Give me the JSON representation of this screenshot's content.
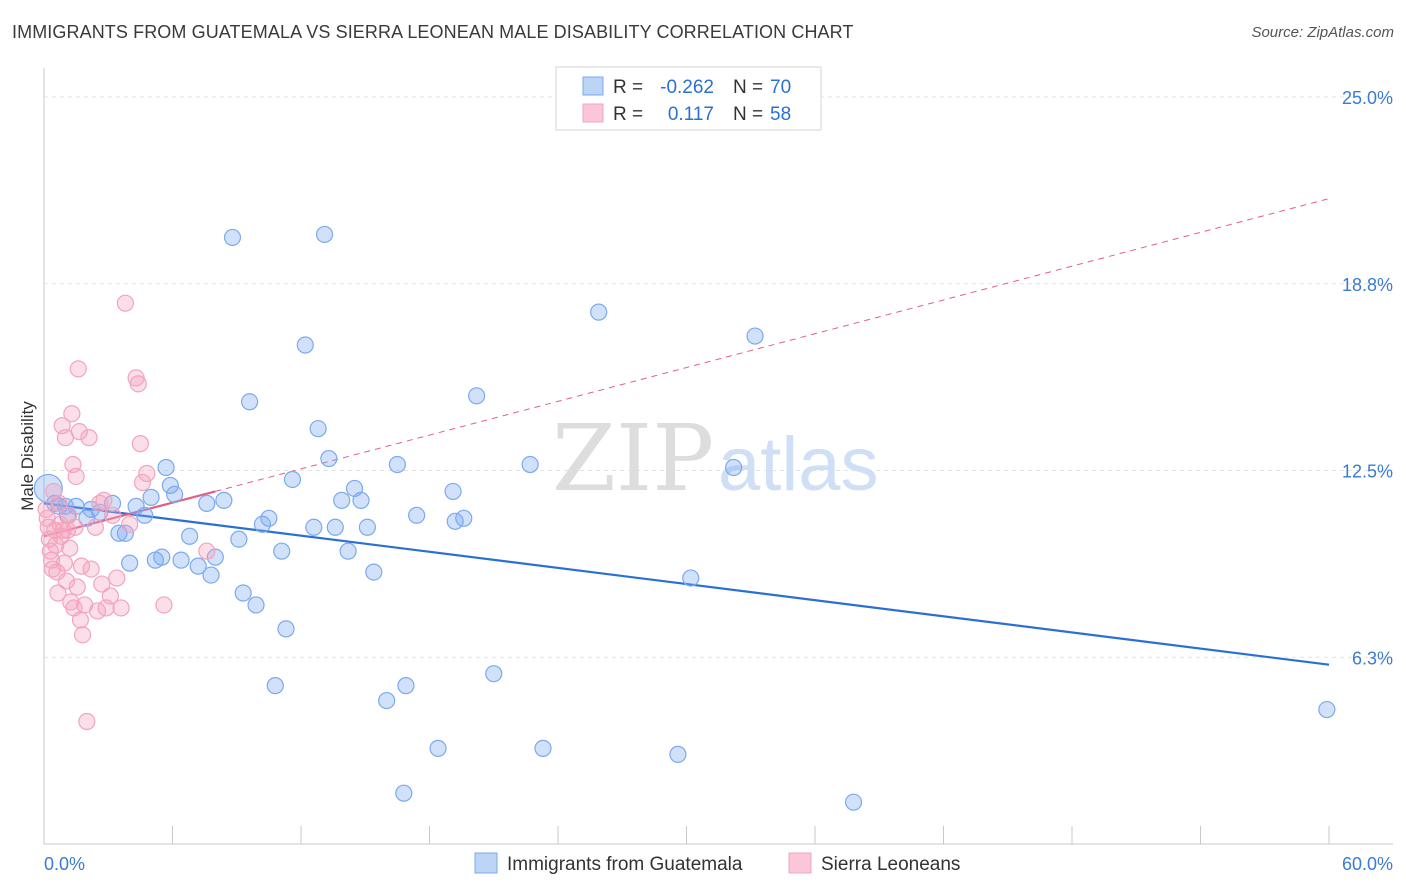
{
  "chart_data": {
    "type": "scatter",
    "title": "IMMIGRANTS FROM GUATEMALA VS SIERRA LEONEAN MALE DISABILITY CORRELATION CHART",
    "source": "Source: ZipAtlas.com",
    "watermark": {
      "zip": "ZIP",
      "atlas": "atlas"
    },
    "ylabel": "Male Disability",
    "xlim": [
      0,
      60
    ],
    "ylim": [
      0,
      25
    ],
    "x_tick_labels": [
      "0.0%",
      "60.0%"
    ],
    "y_ticks": [
      {
        "value": 6.25,
        "label": "6.3%"
      },
      {
        "value": 12.5,
        "label": "12.5%"
      },
      {
        "value": 18.75,
        "label": "18.8%"
      },
      {
        "value": 25.0,
        "label": "25.0%"
      }
    ],
    "stats_box": [
      {
        "r_label": "R =",
        "r_value": "-0.262",
        "n_label": "N =",
        "n_value": "70"
      },
      {
        "r_label": "R =",
        "r_value": "0.117",
        "n_label": "N =",
        "n_value": "58"
      }
    ],
    "series": [
      {
        "name": "Immigrants from Guatemala",
        "color": "#7aaaf0",
        "line_color": "#2a6fd4",
        "trend": {
          "x": [
            0,
            60
          ],
          "y": [
            11.4,
            6.0
          ],
          "dashed": false
        },
        "points": [
          [
            0.2,
            11.9
          ],
          [
            0.5,
            11.4
          ],
          [
            0.7,
            11.3
          ],
          [
            1.0,
            11.3
          ],
          [
            1.1,
            11.0
          ],
          [
            1.5,
            11.3
          ],
          [
            2.0,
            10.9
          ],
          [
            2.2,
            11.2
          ],
          [
            2.6,
            11.1
          ],
          [
            3.2,
            11.4
          ],
          [
            3.5,
            10.4
          ],
          [
            3.8,
            10.4
          ],
          [
            4.0,
            9.4
          ],
          [
            4.3,
            11.3
          ],
          [
            4.7,
            11.0
          ],
          [
            5.0,
            11.6
          ],
          [
            5.2,
            9.5
          ],
          [
            5.5,
            9.6
          ],
          [
            5.7,
            12.6
          ],
          [
            5.9,
            12.0
          ],
          [
            6.1,
            11.7
          ],
          [
            6.4,
            9.5
          ],
          [
            6.8,
            10.3
          ],
          [
            7.2,
            9.3
          ],
          [
            7.6,
            11.4
          ],
          [
            7.8,
            9.0
          ],
          [
            8.0,
            9.6
          ],
          [
            8.4,
            11.5
          ],
          [
            8.8,
            20.3
          ],
          [
            9.1,
            10.2
          ],
          [
            9.3,
            8.4
          ],
          [
            9.6,
            14.8
          ],
          [
            9.9,
            8.0
          ],
          [
            10.2,
            10.7
          ],
          [
            10.5,
            10.9
          ],
          [
            10.8,
            5.3
          ],
          [
            11.1,
            9.8
          ],
          [
            11.3,
            7.2
          ],
          [
            11.6,
            12.2
          ],
          [
            12.2,
            16.7
          ],
          [
            12.6,
            10.6
          ],
          [
            12.8,
            13.9
          ],
          [
            13.1,
            20.4
          ],
          [
            13.3,
            12.9
          ],
          [
            13.6,
            10.6
          ],
          [
            13.9,
            11.5
          ],
          [
            14.2,
            9.8
          ],
          [
            14.5,
            11.9
          ],
          [
            14.8,
            11.5
          ],
          [
            15.1,
            10.6
          ],
          [
            15.4,
            9.1
          ],
          [
            16.0,
            4.8
          ],
          [
            16.5,
            12.7
          ],
          [
            16.8,
            1.7
          ],
          [
            16.9,
            5.3
          ],
          [
            17.4,
            11.0
          ],
          [
            18.4,
            3.2
          ],
          [
            19.1,
            11.8
          ],
          [
            19.2,
            10.8
          ],
          [
            19.6,
            10.9
          ],
          [
            20.2,
            15.0
          ],
          [
            21.0,
            5.7
          ],
          [
            22.7,
            12.7
          ],
          [
            23.3,
            3.2
          ],
          [
            25.9,
            17.8
          ],
          [
            29.6,
            3.0
          ],
          [
            30.2,
            8.9
          ],
          [
            32.2,
            12.6
          ],
          [
            33.2,
            17.0
          ],
          [
            37.8,
            1.4
          ],
          [
            59.9,
            4.5
          ]
        ]
      },
      {
        "name": "Sierra Leoneans",
        "color": "#f4a3bc",
        "line_color": "#e0608a",
        "trend": {
          "x": [
            0,
            8
          ],
          "y": [
            10.3,
            11.8
          ],
          "dashed": false
        },
        "trend_ext": {
          "x": [
            8,
            60
          ],
          "y": [
            11.8,
            21.6
          ],
          "dashed": true
        },
        "points": [
          [
            0.1,
            11.2
          ],
          [
            0.15,
            10.9
          ],
          [
            0.2,
            10.6
          ],
          [
            0.25,
            10.2
          ],
          [
            0.3,
            9.8
          ],
          [
            0.35,
            9.5
          ],
          [
            0.4,
            9.2
          ],
          [
            0.45,
            11.8
          ],
          [
            0.5,
            10.5
          ],
          [
            0.55,
            10.0
          ],
          [
            0.6,
            9.1
          ],
          [
            0.65,
            8.4
          ],
          [
            0.7,
            11.4
          ],
          [
            0.75,
            10.7
          ],
          [
            0.8,
            10.3
          ],
          [
            0.85,
            14.0
          ],
          [
            0.9,
            10.5
          ],
          [
            0.95,
            9.4
          ],
          [
            1.0,
            13.6
          ],
          [
            1.05,
            8.8
          ],
          [
            1.1,
            10.5
          ],
          [
            1.15,
            11.0
          ],
          [
            1.2,
            9.9
          ],
          [
            1.25,
            8.1
          ],
          [
            1.3,
            14.4
          ],
          [
            1.35,
            12.7
          ],
          [
            1.4,
            7.9
          ],
          [
            1.45,
            10.6
          ],
          [
            1.5,
            12.3
          ],
          [
            1.55,
            8.6
          ],
          [
            1.6,
            15.9
          ],
          [
            1.65,
            13.8
          ],
          [
            1.7,
            7.5
          ],
          [
            1.75,
            9.3
          ],
          [
            1.8,
            7.0
          ],
          [
            1.9,
            8.0
          ],
          [
            2.0,
            4.1
          ],
          [
            2.1,
            13.6
          ],
          [
            2.2,
            9.2
          ],
          [
            2.4,
            10.6
          ],
          [
            2.5,
            7.8
          ],
          [
            2.6,
            11.4
          ],
          [
            2.7,
            8.7
          ],
          [
            2.8,
            11.5
          ],
          [
            2.9,
            7.9
          ],
          [
            3.1,
            8.3
          ],
          [
            3.2,
            11.0
          ],
          [
            3.4,
            8.9
          ],
          [
            3.6,
            7.9
          ],
          [
            3.8,
            18.1
          ],
          [
            4.0,
            10.7
          ],
          [
            4.3,
            15.6
          ],
          [
            4.4,
            15.4
          ],
          [
            4.5,
            13.4
          ],
          [
            4.6,
            12.1
          ],
          [
            4.8,
            12.4
          ],
          [
            5.6,
            8.0
          ],
          [
            7.6,
            9.8
          ]
        ]
      }
    ]
  }
}
